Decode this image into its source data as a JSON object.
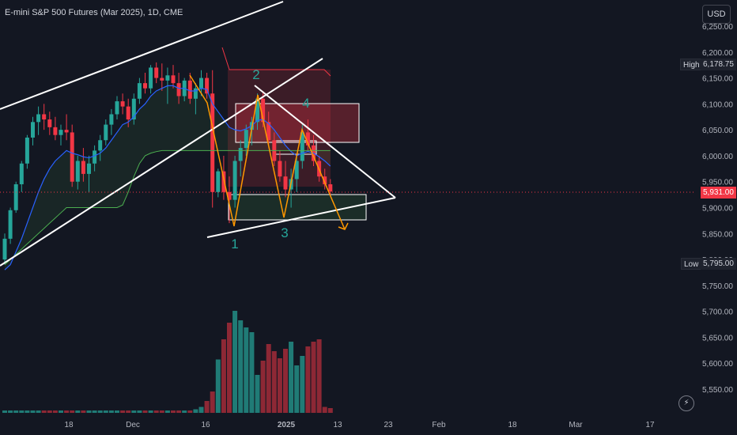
{
  "header": {
    "title": "E-mini S&P 500 Futures (Mar 2025), 1D, CME"
  },
  "currency_button": "USD",
  "badges": {
    "high_label": "High",
    "high_value": "6,178.75",
    "low_label": "Low",
    "low_value": "5,795.00",
    "current_price": "5,931.00"
  },
  "colors": {
    "up": "#26a69a",
    "down": "#f23645",
    "bg": "#131722",
    "ema_blue": "#2962ff",
    "band_green": "#4caf50",
    "zigzag": "#ff9800",
    "wave_label": "#26a69a",
    "trendline": "#ffffff"
  },
  "annotations": {
    "wave_labels": [
      "1",
      "2",
      "3",
      "4"
    ]
  },
  "icons": {
    "replay": "lightning-icon"
  },
  "chart_data": {
    "type": "candlestick",
    "title": "E-mini S&P 500 Futures (Mar 2025), 1D, CME",
    "y_ticks": [
      "6,250.00",
      "6,200.00",
      "6,150.00",
      "6,100.00",
      "6,050.00",
      "6,000.00",
      "5,950.00",
      "5,900.00",
      "5,850.00",
      "5,800.00",
      "5,750.00",
      "5,700.00",
      "5,650.00",
      "5,600.00",
      "5,550.00"
    ],
    "x_ticks": [
      "18",
      "Dec",
      "16",
      "2025",
      "13",
      "23",
      "Feb",
      "18",
      "Mar",
      "17"
    ],
    "ylim": [
      5520,
      6262
    ],
    "grid": false,
    "candles": [
      [
        5800,
        5850,
        5790,
        5840
      ],
      [
        5840,
        5900,
        5830,
        5895
      ],
      [
        5895,
        5950,
        5890,
        5945
      ],
      [
        5945,
        5990,
        5930,
        5985
      ],
      [
        5985,
        6040,
        5975,
        6035
      ],
      [
        6035,
        6075,
        6020,
        6065
      ],
      [
        6065,
        6095,
        6040,
        6080
      ],
      [
        6080,
        6100,
        6050,
        6070
      ],
      [
        6070,
        6085,
        6040,
        6055
      ],
      [
        6055,
        6075,
        6030,
        6040
      ],
      [
        6040,
        6060,
        6020,
        6050
      ],
      [
        6050,
        6080,
        6030,
        6045
      ],
      [
        6045,
        6060,
        5940,
        5950
      ],
      [
        5950,
        6000,
        5935,
        5990
      ],
      [
        5990,
        6015,
        5950,
        5965
      ],
      [
        5965,
        6000,
        5930,
        5985
      ],
      [
        5985,
        6020,
        5970,
        6010
      ],
      [
        6010,
        6040,
        5990,
        6030
      ],
      [
        6030,
        6070,
        6020,
        6060
      ],
      [
        6060,
        6090,
        6040,
        6080
      ],
      [
        6080,
        6115,
        6070,
        6105
      ],
      [
        6105,
        6120,
        6080,
        6095
      ],
      [
        6095,
        6110,
        6055,
        6070
      ],
      [
        6070,
        6120,
        6060,
        6110
      ],
      [
        6110,
        6150,
        6100,
        6140
      ],
      [
        6140,
        6160,
        6120,
        6130
      ],
      [
        6130,
        6175,
        6120,
        6170
      ],
      [
        6170,
        6180,
        6140,
        6150
      ],
      [
        6150,
        6178,
        6125,
        6145
      ],
      [
        6145,
        6170,
        6100,
        6155
      ],
      [
        6155,
        6175,
        6130,
        6140
      ],
      [
        6140,
        6160,
        6100,
        6115
      ],
      [
        6115,
        6150,
        6105,
        6145
      ],
      [
        6145,
        6160,
        6100,
        6110
      ],
      [
        6110,
        6140,
        6080,
        6130
      ],
      [
        6130,
        6165,
        6115,
        6150
      ],
      [
        6150,
        6160,
        6110,
        6120
      ],
      [
        6120,
        6165,
        5900,
        5930
      ],
      [
        5930,
        5975,
        5920,
        5970
      ],
      [
        5970,
        6000,
        5915,
        5930
      ],
      [
        5930,
        5960,
        5870,
        5915
      ],
      [
        5915,
        6000,
        5900,
        5990
      ],
      [
        5990,
        6030,
        5960,
        6015
      ],
      [
        6015,
        6060,
        6000,
        6050
      ],
      [
        6050,
        6075,
        6020,
        6065
      ],
      [
        6065,
        6120,
        6050,
        6110
      ],
      [
        6110,
        6125,
        6055,
        6065
      ],
      [
        6065,
        6085,
        6020,
        6030
      ],
      [
        6030,
        6045,
        5980,
        5990
      ],
      [
        5990,
        6010,
        5950,
        5960
      ],
      [
        5960,
        5990,
        5920,
        5935
      ],
      [
        5935,
        5975,
        5900,
        5955
      ],
      [
        5955,
        6000,
        5930,
        5990
      ],
      [
        5990,
        6060,
        5975,
        6045
      ],
      [
        6045,
        6070,
        6010,
        6020
      ],
      [
        6020,
        6040,
        5980,
        5990
      ],
      [
        5990,
        6000,
        5950,
        5960
      ],
      [
        5960,
        5975,
        5935,
        5945
      ],
      [
        5945,
        5955,
        5925,
        5931
      ]
    ],
    "ema": [
      5780,
      5790,
      5815,
      5840,
      5870,
      5900,
      5930,
      5955,
      5975,
      5990,
      6000,
      6010,
      6005,
      6002,
      5998,
      5996,
      6000,
      6005,
      6015,
      6030,
      6045,
      6060,
      6065,
      6075,
      6090,
      6100,
      6115,
      6125,
      6130,
      6135,
      6135,
      6130,
      6130,
      6125,
      6125,
      6130,
      6128,
      6100,
      6085,
      6070,
      6055,
      6050,
      6048,
      6052,
      6058,
      6068,
      6070,
      6062,
      6050,
      6035,
      6020,
      6008,
      6000,
      6005,
      6008,
      6005,
      5998,
      5990,
      5980
    ],
    "band_lower": [
      5790,
      5800,
      5810,
      5820,
      5830,
      5840,
      5850,
      5860,
      5870,
      5880,
      5890,
      5900,
      5900,
      5900,
      5900,
      5900,
      5900,
      5900,
      5900,
      5900,
      5900,
      5905,
      5930,
      5960,
      5985,
      6000,
      6005,
      6008,
      6010,
      6010,
      6010,
      6010,
      6010,
      6010,
      6010,
      6010,
      6010,
      6010,
      6010,
      6010,
      6010,
      6010,
      6010,
      6010,
      6010,
      6010,
      6010,
      6010,
      6010,
      6010,
      6010,
      6010,
      6010,
      6010,
      6010,
      6010,
      6010,
      6010,
      6010
    ],
    "volumes": [
      0.02,
      0.02,
      0.02,
      0.02,
      0.02,
      0.02,
      0.02,
      0.02,
      0.02,
      0.02,
      0.02,
      0.02,
      0.02,
      0.02,
      0.02,
      0.02,
      0.02,
      0.02,
      0.02,
      0.02,
      0.02,
      0.02,
      0.02,
      0.02,
      0.02,
      0.02,
      0.02,
      0.02,
      0.02,
      0.02,
      0.02,
      0.02,
      0.02,
      0.02,
      0.03,
      0.05,
      0.1,
      0.18,
      0.45,
      0.62,
      0.76,
      0.86,
      0.78,
      0.72,
      0.68,
      0.32,
      0.44,
      0.58,
      0.52,
      0.46,
      0.54,
      0.6,
      0.4,
      0.48,
      0.56,
      0.6,
      0.62,
      0.05,
      0.04
    ]
  }
}
